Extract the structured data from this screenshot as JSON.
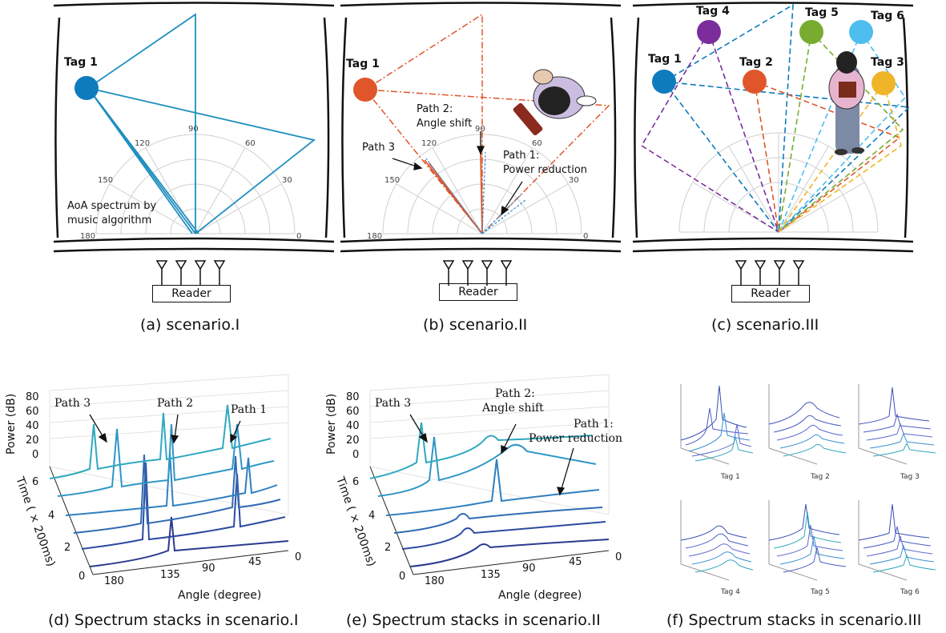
{
  "captions": {
    "a": "(a) scenario.I",
    "b": "(b) scenario.II",
    "c": "(c) scenario.III",
    "d": "(d)  Spectrum stacks in scenario.I",
    "e": "(e)  Spectrum stacks in scenario.II",
    "f": "(f)  Spectrum stacks in scenario.III"
  },
  "reader_label": "Reader",
  "polar_ticks": [
    "180",
    "150",
    "120",
    "90",
    "60",
    "30",
    "0"
  ],
  "panel_a": {
    "tag": "Tag 1",
    "note_line1": "AoA spectrum by",
    "note_line2": "music algorithm",
    "colors": {
      "path": "#1f8fbf",
      "tag": "#0e7bbd"
    }
  },
  "panel_b": {
    "tag": "Tag 1",
    "path3": "Path 3",
    "path2_l1": "Path 2:",
    "path2_l2": "Angle shift",
    "path1_l1": "Path 1:",
    "path1_l2": "Power reduction",
    "colors": {
      "path": "#e0562a",
      "tag": "#e0562a",
      "reflect": "#3a8fd0"
    }
  },
  "panel_c": {
    "tags": [
      {
        "name": "Tag 1",
        "color": "#0e7bbd"
      },
      {
        "name": "Tag 2",
        "color": "#e0562a"
      },
      {
        "name": "Tag 3",
        "color": "#f0b429"
      },
      {
        "name": "Tag 4",
        "color": "#7b2d9b"
      },
      {
        "name": "Tag 5",
        "color": "#77ac30"
      },
      {
        "name": "Tag 6",
        "color": "#4dbeee"
      }
    ]
  },
  "panel_d": {
    "ylabel": "Power (dB)",
    "zlabel": "Time ( × 200ms)",
    "xlabel": "Angle (degree)",
    "power_ticks": [
      "80",
      "60",
      "40",
      "20",
      "0"
    ],
    "time_ticks": [
      "6",
      "4",
      "2",
      "0"
    ],
    "angle_ticks": [
      "180",
      "135",
      "90",
      "45",
      "0"
    ],
    "path3": "Path 3",
    "path2": "Path 2",
    "path1": "Path 1"
  },
  "panel_e": {
    "ylabel": "Power (dB)",
    "zlabel": "Time ( × 200ms)",
    "xlabel": "Angle (degree)",
    "power_ticks": [
      "80",
      "60",
      "40",
      "20",
      "0"
    ],
    "time_ticks": [
      "6",
      "4",
      "2",
      "0"
    ],
    "angle_ticks": [
      "180",
      "135",
      "90",
      "45",
      "0"
    ],
    "path3": "Path 3",
    "path2_l1": "Path 2:",
    "path2_l2": "Angle shift",
    "path1_l1": "Path 1:",
    "path1_l2": "Power reduction"
  },
  "panel_f": {
    "tags": [
      "Tag 1",
      "Tag 2",
      "Tag 3",
      "Tag 4",
      "Tag 5",
      "Tag 6"
    ]
  }
}
